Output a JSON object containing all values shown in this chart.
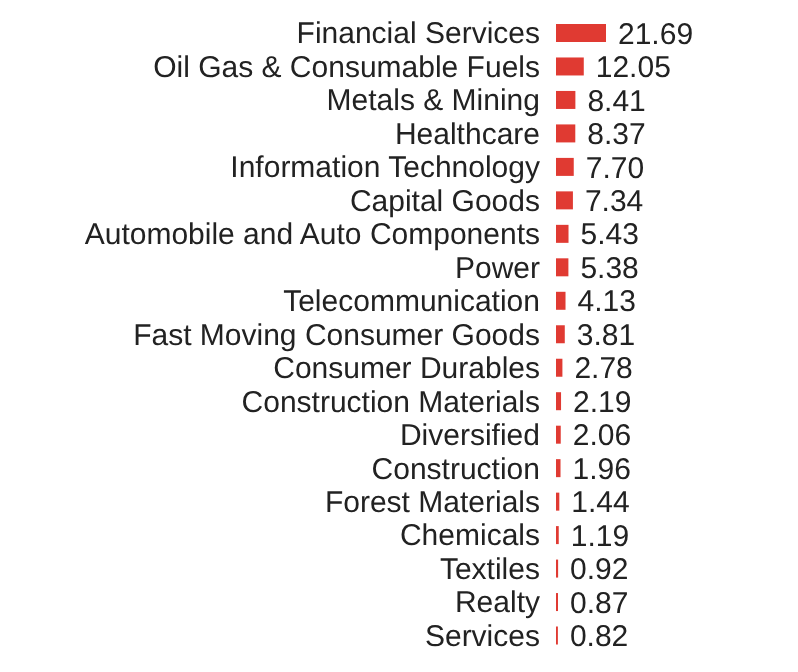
{
  "chart_data": {
    "type": "bar",
    "orientation": "horizontal",
    "color": "#e03a32",
    "value_labels": [
      "21.69",
      "12.05",
      "8.41",
      "8.37",
      "7.70",
      "7.34",
      "5.43",
      "5.38",
      "4.13",
      "3.81",
      "2.78",
      "2.19",
      "2.06",
      "1.96",
      "1.44",
      "1.19",
      "0.92",
      "0.87",
      "0.82"
    ],
    "categories": [
      "Financial Services",
      "Oil Gas & Consumable Fuels",
      "Metals & Mining",
      "Healthcare",
      "Information Technology",
      "Capital Goods",
      "Automobile and Auto Components",
      "Power",
      "Telecommunication",
      "Fast Moving Consumer Goods",
      "Consumer Durables",
      "Construction Materials",
      "Diversified",
      "Construction",
      "Forest Materials",
      "Chemicals",
      "Textiles",
      "Realty",
      "Services"
    ],
    "values": [
      21.69,
      12.05,
      8.41,
      8.37,
      7.7,
      7.34,
      5.43,
      5.38,
      4.13,
      3.81,
      2.78,
      2.19,
      2.06,
      1.96,
      1.44,
      1.19,
      0.92,
      0.87,
      0.82
    ]
  }
}
